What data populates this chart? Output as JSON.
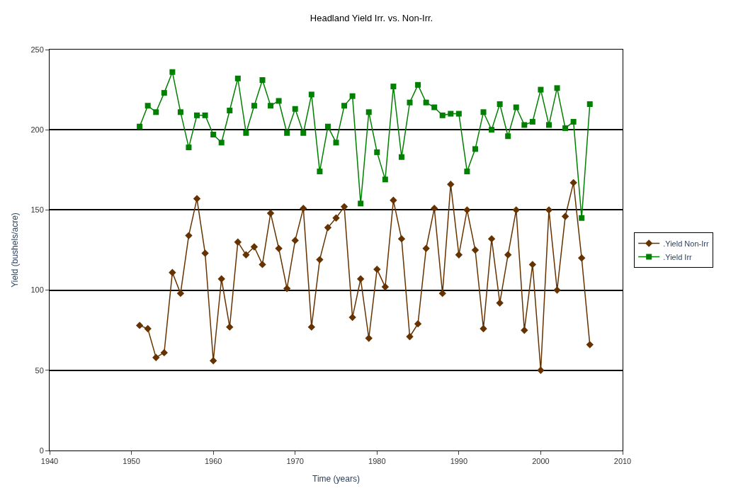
{
  "chart_data": {
    "type": "line",
    "title": "Headland Yield Irr. vs. Non-Irr.",
    "xlabel": "Time (years)",
    "ylabel": "Yield (bushels/acre)",
    "x": [
      1951,
      1952,
      1953,
      1954,
      1955,
      1956,
      1957,
      1958,
      1959,
      1960,
      1961,
      1962,
      1963,
      1964,
      1965,
      1966,
      1967,
      1968,
      1969,
      1970,
      1971,
      1972,
      1973,
      1974,
      1975,
      1976,
      1977,
      1978,
      1979,
      1980,
      1981,
      1982,
      1983,
      1984,
      1985,
      1986,
      1987,
      1988,
      1989,
      1990,
      1991,
      1992,
      1993,
      1994,
      1995,
      1996,
      1997,
      1998,
      1999,
      2000,
      2001,
      2002,
      2003,
      2004,
      2005,
      2006
    ],
    "series": [
      {
        "name": ".Yield Non-Irr",
        "color": "#663300",
        "marker": "diamond",
        "values": [
          78,
          76,
          58,
          61,
          111,
          98,
          134,
          157,
          123,
          56,
          107,
          77,
          130,
          122,
          127,
          116,
          148,
          126,
          101,
          131,
          151,
          77,
          119,
          139,
          145,
          152,
          83,
          107,
          70,
          113,
          102,
          156,
          132,
          71,
          79,
          126,
          151,
          98,
          166,
          122,
          150,
          125,
          76,
          132,
          92,
          122,
          150,
          75,
          116,
          50,
          150,
          100,
          146,
          167,
          120,
          66
        ]
      },
      {
        "name": ".Yield Irr",
        "color": "#008000",
        "marker": "square",
        "values": [
          202,
          215,
          211,
          223,
          236,
          211,
          189,
          209,
          209,
          197,
          192,
          212,
          232,
          198,
          215,
          231,
          215,
          218,
          198,
          213,
          198,
          222,
          174,
          202,
          192,
          215,
          221,
          154,
          211,
          186,
          169,
          227,
          183,
          217,
          228,
          217,
          214,
          209,
          210,
          210,
          174,
          188,
          211,
          200,
          216,
          196,
          214,
          203,
          205,
          225,
          203,
          226,
          201,
          205,
          145,
          216
        ]
      }
    ],
    "xlim": [
      1940,
      2010
    ],
    "xticks": [
      1940,
      1950,
      1960,
      1970,
      1980,
      1990,
      2000,
      2010
    ],
    "ylim": [
      0,
      250
    ],
    "yticks": [
      0,
      50,
      100,
      150,
      200,
      250
    ],
    "grid": "y",
    "legend": "right"
  }
}
